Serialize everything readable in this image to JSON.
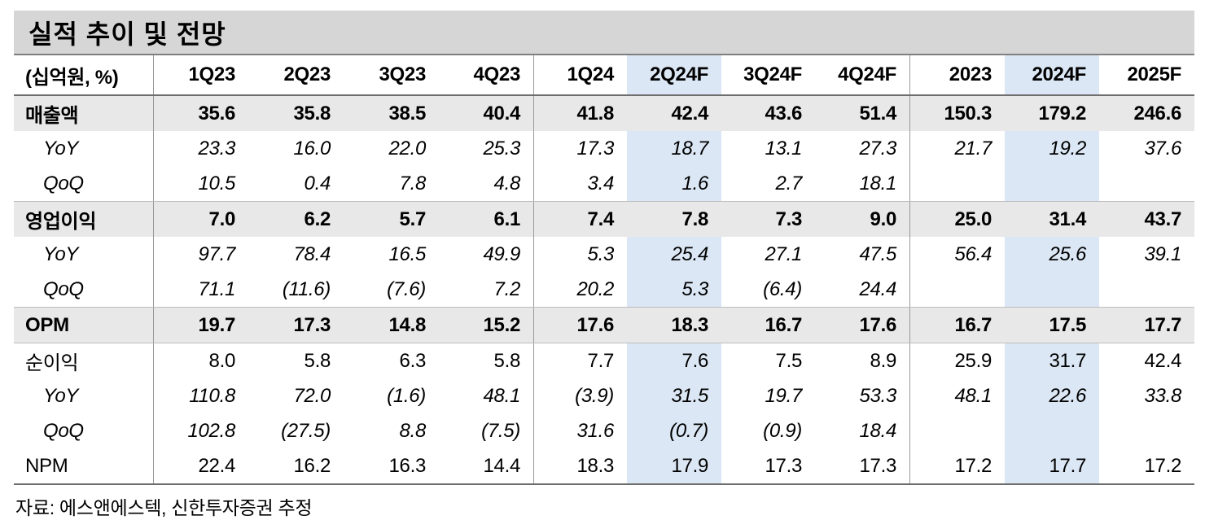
{
  "title": "실적 추이 및 전망",
  "footer": "자료: 에스앤에스텍, 신한투자증권 추정",
  "colors": {
    "title_band_bg": "#d6d6d6",
    "section_row_bg": "#e8e8e8",
    "highlight_column_bg": "#dbe7f4",
    "strong_line": "#6e6e6e",
    "light_line": "#bdbdbd",
    "vertical_line": "#999999"
  },
  "table": {
    "unit_label": "(십억원, %)",
    "columns": [
      "1Q23",
      "2Q23",
      "3Q23",
      "4Q23",
      "1Q24",
      "2Q24F",
      "3Q24F",
      "4Q24F",
      "2023",
      "2024F",
      "2025F"
    ],
    "highlighted_columns": [
      "2Q24F",
      "2024F"
    ],
    "group_separator_columns": [
      "1Q23",
      "1Q24",
      "2023"
    ],
    "rows": [
      {
        "label": "매출액",
        "style": "section",
        "sep_top": false,
        "values": [
          "35.6",
          "35.8",
          "38.5",
          "40.4",
          "41.8",
          "42.4",
          "43.6",
          "51.4",
          "150.3",
          "179.2",
          "246.6"
        ]
      },
      {
        "label": "YoY",
        "style": "sub",
        "sep_top": false,
        "values": [
          "23.3",
          "16.0",
          "22.0",
          "25.3",
          "17.3",
          "18.7",
          "13.1",
          "27.3",
          "21.7",
          "19.2",
          "37.6"
        ]
      },
      {
        "label": "QoQ",
        "style": "sub",
        "sep_top": false,
        "values": [
          "10.5",
          "0.4",
          "7.8",
          "4.8",
          "3.4",
          "1.6",
          "2.7",
          "18.1",
          "",
          "",
          ""
        ]
      },
      {
        "label": "영업이익",
        "style": "section",
        "sep_top": true,
        "values": [
          "7.0",
          "6.2",
          "5.7",
          "6.1",
          "7.4",
          "7.8",
          "7.3",
          "9.0",
          "25.0",
          "31.4",
          "43.7"
        ]
      },
      {
        "label": "YoY",
        "style": "sub",
        "sep_top": false,
        "values": [
          "97.7",
          "78.4",
          "16.5",
          "49.9",
          "5.3",
          "25.4",
          "27.1",
          "47.5",
          "56.4",
          "25.6",
          "39.1"
        ]
      },
      {
        "label": "QoQ",
        "style": "sub",
        "sep_top": false,
        "values": [
          "71.1",
          "(11.6)",
          "(7.6)",
          "7.2",
          "20.2",
          "5.3",
          "(6.4)",
          "24.4",
          "",
          "",
          ""
        ]
      },
      {
        "label": "OPM",
        "style": "section",
        "sep_top": true,
        "values": [
          "19.7",
          "17.3",
          "14.8",
          "15.2",
          "17.6",
          "18.3",
          "16.7",
          "17.6",
          "16.7",
          "17.5",
          "17.7"
        ]
      },
      {
        "label": "순이익",
        "style": "plain",
        "sep_top": true,
        "values": [
          "8.0",
          "5.8",
          "6.3",
          "5.8",
          "7.7",
          "7.6",
          "7.5",
          "8.9",
          "25.9",
          "31.7",
          "42.4"
        ]
      },
      {
        "label": "YoY",
        "style": "sub",
        "sep_top": false,
        "values": [
          "110.8",
          "72.0",
          "(1.6)",
          "48.1",
          "(3.9)",
          "31.5",
          "19.7",
          "53.3",
          "48.1",
          "22.6",
          "33.8"
        ]
      },
      {
        "label": "QoQ",
        "style": "sub",
        "sep_top": false,
        "values": [
          "102.8",
          "(27.5)",
          "8.8",
          "(7.5)",
          "31.6",
          "(0.7)",
          "(0.9)",
          "18.4",
          "",
          "",
          ""
        ]
      },
      {
        "label": "NPM",
        "style": "plain",
        "sep_top": false,
        "values": [
          "22.4",
          "16.2",
          "16.3",
          "14.4",
          "18.3",
          "17.9",
          "17.3",
          "17.3",
          "17.2",
          "17.7",
          "17.2"
        ]
      }
    ]
  }
}
